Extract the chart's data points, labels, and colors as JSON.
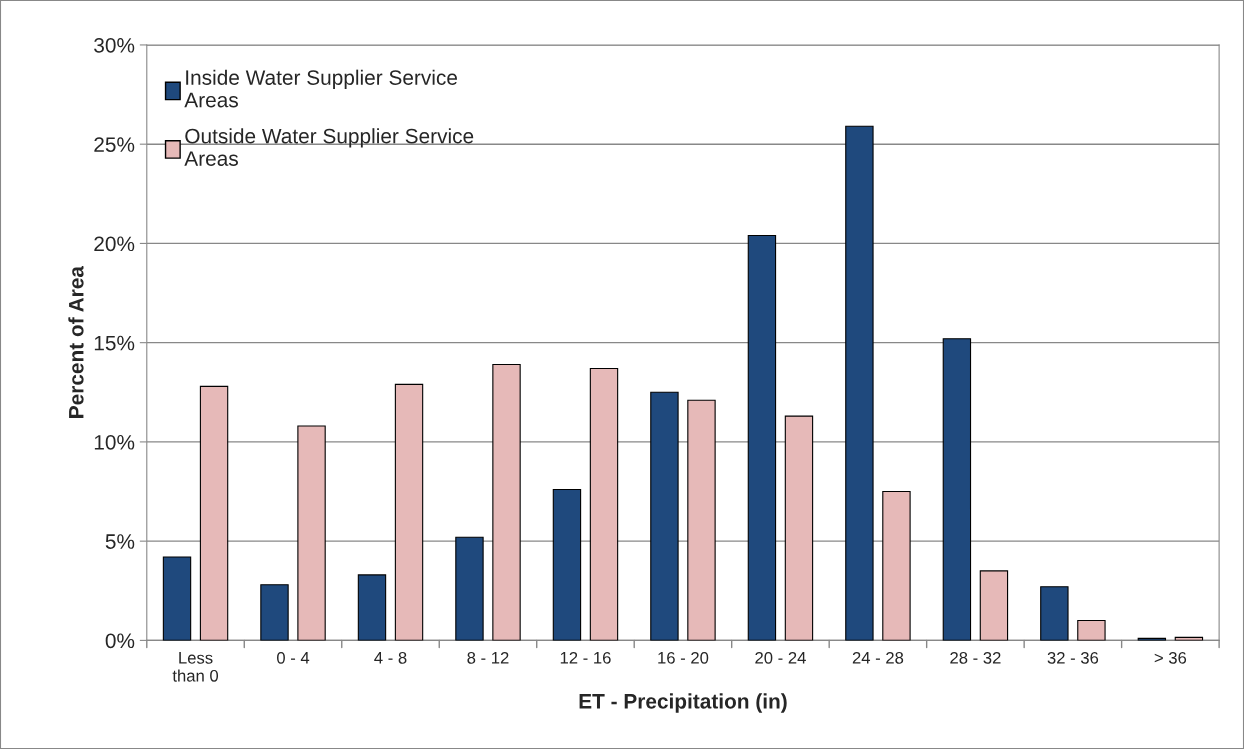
{
  "chart_data": {
    "type": "bar",
    "xlabel": "ET - Precipitation (in)",
    "ylabel": "Percent of Area",
    "categories": [
      "Less than 0",
      "0 - 4",
      "4 - 8",
      "8 - 12",
      "12 - 16",
      "16 - 20",
      "20 - 24",
      "24 - 28",
      "28 - 32",
      "32 - 36",
      "> 36"
    ],
    "series": [
      {
        "name": "Inside Water Supplier Service Areas",
        "color": "#1f497d",
        "values": [
          4.2,
          2.8,
          3.3,
          5.2,
          7.6,
          12.5,
          20.4,
          25.9,
          15.2,
          2.7,
          0.1
        ]
      },
      {
        "name": "Outside Water Supplier Service Areas",
        "color": "#e6b9b8",
        "values": [
          12.8,
          10.8,
          12.9,
          13.9,
          13.7,
          12.1,
          11.3,
          7.5,
          3.5,
          1.0,
          0.15
        ]
      }
    ],
    "ylim": [
      0,
      30
    ],
    "yticks": [
      {
        "value": 0,
        "label": "0%"
      },
      {
        "value": 5,
        "label": "5%"
      },
      {
        "value": 10,
        "label": "10%"
      },
      {
        "value": 15,
        "label": "15%"
      },
      {
        "value": 20,
        "label": "20%"
      },
      {
        "value": 25,
        "label": "25%"
      },
      {
        "value": 30,
        "label": "30%"
      }
    ],
    "grid": "y",
    "legend": "top left"
  }
}
